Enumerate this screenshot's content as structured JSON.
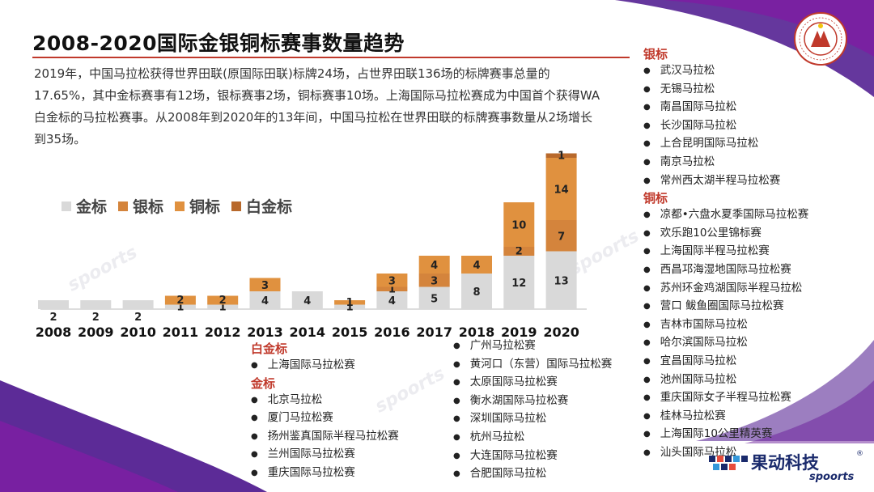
{
  "title": "2008-2020国际金银铜标赛事数量趋势",
  "intro": "2019年，中国马拉松获得世界田联(原国际田联)标牌24场，占世界田联136场的标牌赛事总量的17.65%，其中金标赛事有12场，银标赛事2场，铜标赛事10场。上海国际马拉松赛成为中国首个获得WA白金标的马拉松赛事。从2008年到2020年的13年间，中国马拉松在世界田联的标牌赛事数量从2场增长到35场。",
  "logo_text": "CHINESE ATHLETICS ASSOCIATION 中国田径协会",
  "watermark": "spoorts",
  "brand": {
    "name": "果动科技",
    "reg": "®",
    "sub": "spoorts"
  },
  "colors": {
    "gold": "#d9d9d9",
    "silver": "#d4843c",
    "bronze": "#e0913f",
    "platinum": "#b8692c",
    "accent": "#c0392b",
    "purple": "#6a1b9a"
  },
  "chart_data": {
    "type": "bar",
    "stacked": true,
    "categories": [
      "2008",
      "2009",
      "2010",
      "2011",
      "2012",
      "2013",
      "2014",
      "2015",
      "2016",
      "2017",
      "2018",
      "2019",
      "2020"
    ],
    "series": [
      {
        "name": "金标",
        "values": [
          2,
          2,
          2,
          1,
          1,
          4,
          4,
          1,
          4,
          5,
          8,
          12,
          13
        ]
      },
      {
        "name": "银标",
        "values": [
          0,
          0,
          0,
          0,
          0,
          0,
          0,
          0,
          1,
          3,
          0,
          2,
          7
        ]
      },
      {
        "name": "铜标",
        "values": [
          0,
          0,
          0,
          2,
          2,
          3,
          0,
          1,
          3,
          4,
          4,
          10,
          14
        ]
      },
      {
        "name": "白金标",
        "values": [
          0,
          0,
          0,
          0,
          0,
          0,
          0,
          0,
          0,
          0,
          0,
          0,
          1
        ]
      }
    ],
    "legend_position": "top-left",
    "grid": false
  },
  "lists": {
    "platinum": {
      "head": "白金标",
      "items": [
        "上海国际马拉松赛"
      ]
    },
    "gold": {
      "head": "金标",
      "items": [
        "北京马拉松",
        "厦门马拉松赛",
        "扬州鉴真国际半程马拉松赛",
        "兰州国际马拉松赛",
        "重庆国际马拉松赛"
      ]
    },
    "gold_cont": {
      "items": [
        "广州马拉松赛",
        "黄河口（东营）国际马拉松赛",
        "太原国际马拉松赛",
        "衡水湖国际马拉松赛",
        "深圳国际马拉松",
        "杭州马拉松",
        "大连国际马拉松赛",
        "合肥国际马拉松"
      ]
    },
    "silver": {
      "head": "银标",
      "items": [
        "武汉马拉松",
        "无锡马拉松",
        "南昌国际马拉松",
        "长沙国际马拉松",
        "上合昆明国际马拉松",
        "南京马拉松",
        "常州西太湖半程马拉松赛"
      ]
    },
    "bronze": {
      "head": "铜标",
      "items": [
        "凉都•六盘水夏季国际马拉松赛",
        "欢乐跑10公里锦标赛",
        "上海国际半程马拉松赛",
        "西昌邛海湿地国际马拉松赛",
        "苏州环金鸡湖国际半程马拉松",
        "营口 鲅鱼圈国际马拉松赛",
        "吉林市国际马拉松",
        "哈尔滨国际马拉松",
        "宜昌国际马拉松",
        "池州国际马拉松",
        "重庆国际女子半程马拉松赛",
        "桂林马拉松赛",
        "上海国际10公里精英赛",
        "汕头国际马拉松"
      ]
    }
  }
}
